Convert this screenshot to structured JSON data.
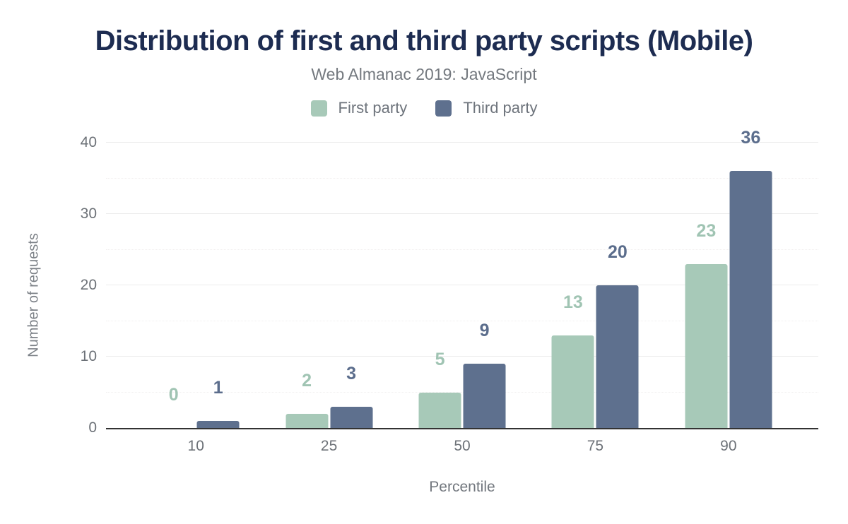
{
  "header": {
    "title": "Distribution of first and third party scripts (Mobile)",
    "subtitle": "Web Almanac 2019: JavaScript"
  },
  "legend": [
    {
      "label": "First party",
      "swatch": "legend-swatch-first-party",
      "color": "#a7c9b8"
    },
    {
      "label": "Third party",
      "swatch": "legend-swatch-third-party",
      "color": "#5e708e"
    }
  ],
  "chart_data": {
    "type": "bar",
    "title": "Distribution of first and third party scripts (Mobile)",
    "subtitle": "Web Almanac 2019: JavaScript",
    "categories": [
      "10",
      "25",
      "50",
      "75",
      "90"
    ],
    "series": [
      {
        "name": "First party",
        "values": [
          0,
          2,
          5,
          13,
          23
        ],
        "color": "#a7c9b8",
        "label_color": "#a0c4b3"
      },
      {
        "name": "Third party",
        "values": [
          1,
          3,
          9,
          20,
          36
        ],
        "color": "#5e708e",
        "label_color": "#5b6d8c"
      }
    ],
    "xlabel": "Percentile",
    "ylabel": "Number of requests",
    "ylim": [
      0,
      40
    ],
    "yticks": [
      0,
      10,
      20,
      30,
      40
    ],
    "minor_gridlines": [
      5,
      15,
      25,
      35
    ],
    "grid": true,
    "legend_position": "top",
    "axis_line_color": "#333333",
    "major_grid_color": "#ececec",
    "minor_grid_color": "#f1efef",
    "title_color": "#1d2c51",
    "text_color": "#6c7177"
  }
}
